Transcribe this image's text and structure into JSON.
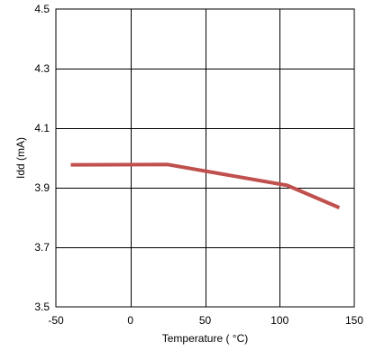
{
  "chart_data": {
    "type": "line",
    "title": "",
    "xlabel": "Temperature ( °C)",
    "ylabel": "Idd (mA)",
    "xlim": [
      -50,
      150
    ],
    "ylim": [
      3.5,
      4.5
    ],
    "xticks": [
      -50,
      0,
      50,
      100,
      150
    ],
    "xtick_labels": [
      "-50",
      "0",
      "50",
      "100",
      "150"
    ],
    "yticks": [
      3.5,
      3.7,
      3.9,
      4.1,
      4.3,
      4.5
    ],
    "ytick_labels": [
      "3.5",
      "3.7",
      "3.9",
      "4.1",
      "4.3",
      "4.5"
    ],
    "grid": true,
    "legend": "none",
    "series": [
      {
        "color": "#c0504d",
        "x": [
          -40,
          25,
          105,
          125,
          140
        ],
        "y": [
          3.977,
          3.978,
          3.908,
          3.865,
          3.833
        ]
      }
    ]
  }
}
